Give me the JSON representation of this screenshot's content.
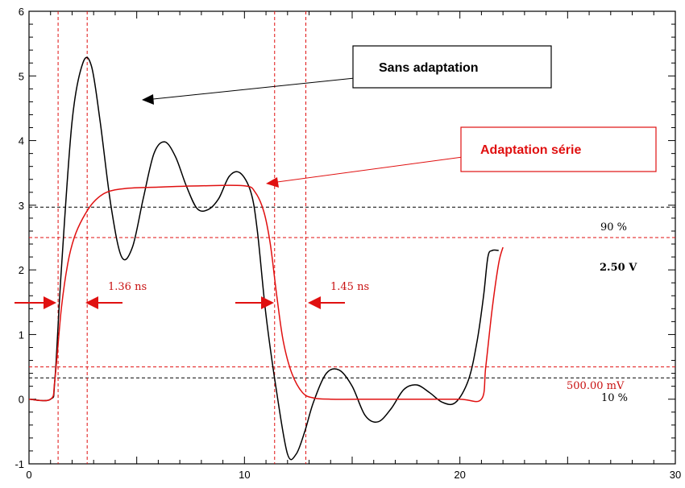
{
  "chart_data": {
    "type": "line",
    "title": "",
    "xlabel": "",
    "ylabel": "",
    "xlim": [
      0,
      30
    ],
    "ylim": [
      -1,
      6
    ],
    "x_ticks": [
      "0",
      "10",
      "20",
      "30"
    ],
    "y_ticks": [
      "-1",
      "0",
      "1",
      "2",
      "3",
      "4",
      "5",
      "6"
    ],
    "grid": false,
    "colors": {
      "sans": "#000000",
      "serie": "#e01010",
      "ref": "#000000",
      "marker": "#e01010"
    },
    "series": [
      {
        "name": "Sans adaptation",
        "x": [
          0,
          1.0,
          1.2,
          1.5,
          2.0,
          2.5,
          2.9,
          3.3,
          3.8,
          4.3,
          4.8,
          5.3,
          5.8,
          6.3,
          6.8,
          7.3,
          7.8,
          8.3,
          8.8,
          9.3,
          9.8,
          10.3,
          10.6,
          11.0,
          11.5,
          12.0,
          12.4,
          12.8,
          13.2,
          13.8,
          14.4,
          15.0,
          15.6,
          16.2,
          16.8,
          17.4,
          18.0,
          18.6,
          19.2,
          19.8,
          20.4,
          20.8,
          21.1,
          21.3,
          21.5,
          21.8
        ],
        "y": [
          0,
          0,
          0.3,
          2.0,
          4.3,
          5.2,
          5.15,
          4.3,
          3.0,
          2.2,
          2.35,
          3.1,
          3.8,
          3.98,
          3.75,
          3.3,
          2.95,
          2.93,
          3.1,
          3.45,
          3.5,
          3.2,
          2.6,
          1.3,
          0.1,
          -0.85,
          -0.85,
          -0.5,
          -0.05,
          0.4,
          0.45,
          0.2,
          -0.25,
          -0.35,
          -0.15,
          0.15,
          0.22,
          0.1,
          -0.05,
          -0.05,
          0.3,
          0.9,
          1.6,
          2.2,
          2.3,
          2.3
        ]
      },
      {
        "name": "Adaptation série",
        "x": [
          0,
          1.0,
          1.2,
          1.5,
          1.8,
          2.1,
          2.5,
          3.0,
          3.6,
          4.5,
          6.0,
          8.0,
          10.0,
          10.5,
          10.9,
          11.2,
          11.5,
          11.8,
          12.2,
          12.7,
          13.2,
          14.0,
          16.0,
          18.0,
          20.0,
          21.0,
          21.2,
          21.5,
          21.8,
          22.0
        ],
        "y": [
          0,
          0,
          0.3,
          1.4,
          2.1,
          2.5,
          2.8,
          3.05,
          3.2,
          3.26,
          3.28,
          3.3,
          3.3,
          3.2,
          2.9,
          2.4,
          1.6,
          0.9,
          0.4,
          0.1,
          0.02,
          0,
          0,
          0,
          0,
          0,
          0.5,
          1.4,
          2.1,
          2.35
        ]
      }
    ],
    "reference_lines": [
      {
        "value": 2.97,
        "color": "#000000"
      },
      {
        "value": 2.5,
        "color": "#000000"
      },
      {
        "value": 2.5,
        "color": "#e01010"
      },
      {
        "value": 0.5,
        "color": "#e01010"
      },
      {
        "value": 0.33,
        "color": "#000000"
      }
    ],
    "vertical_markers": [
      1.35,
      2.7,
      11.4,
      12.85
    ],
    "annotations": {
      "pct90": "90 %",
      "v250": "2.50 V",
      "mv500": "500.00 mV",
      "pct10": "10 %",
      "rise_time": "1.36 ns",
      "fall_time": "1.45 ns"
    },
    "legend_boxes": {
      "sans": "Sans adaptation",
      "serie": "Adaptation série"
    }
  }
}
